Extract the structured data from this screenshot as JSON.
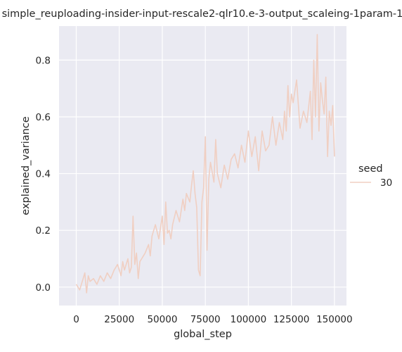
{
  "chart_data": {
    "type": "line",
    "title": "simple_reuploading-insider-input-rescale2-qlr10.e-3-output_scaleing-1param-1",
    "xlabel": "global_step",
    "ylabel": "explained_variance",
    "xlim": [
      -10000,
      157000
    ],
    "ylim": [
      -0.065,
      0.92
    ],
    "xticks": [
      0,
      25000,
      50000,
      75000,
      100000,
      125000,
      150000
    ],
    "xtick_labels": [
      "0",
      "25000",
      "50000",
      "75000",
      "100000",
      "125000",
      "150000"
    ],
    "yticks": [
      0.0,
      0.2,
      0.4,
      0.6,
      0.8
    ],
    "ytick_labels": [
      "0.0",
      "0.2",
      "0.4",
      "0.6",
      "0.8"
    ],
    "grid": true,
    "legend": {
      "title": "seed",
      "placement": "right"
    },
    "series": [
      {
        "name": "30",
        "color": "#f0cfc2",
        "x": [
          0,
          2000,
          4000,
          5000,
          6000,
          7000,
          8000,
          10000,
          12000,
          14000,
          16000,
          18000,
          20000,
          22000,
          24000,
          26000,
          27000,
          28000,
          30000,
          31000,
          32000,
          33000,
          34000,
          35000,
          36000,
          37000,
          38000,
          40000,
          42000,
          43000,
          44000,
          46000,
          48000,
          50000,
          51000,
          52000,
          53000,
          54000,
          55000,
          56000,
          58000,
          60000,
          62000,
          63000,
          64000,
          66000,
          67000,
          68000,
          69000,
          70000,
          71000,
          72000,
          73000,
          74000,
          75000,
          76000,
          77000,
          78000,
          80000,
          81000,
          82000,
          84000,
          86000,
          88000,
          90000,
          92000,
          94000,
          96000,
          98000,
          100000,
          102000,
          104000,
          106000,
          108000,
          110000,
          112000,
          114000,
          116000,
          118000,
          120000,
          121000,
          122000,
          123000,
          124000,
          125000,
          126000,
          128000,
          130000,
          132000,
          134000,
          136000,
          137000,
          138000,
          139000,
          140000,
          141000,
          142000,
          143000,
          144000,
          145000,
          146000,
          147000,
          148000,
          149000,
          150000
        ],
        "y": [
          0.01,
          -0.01,
          0.03,
          0.05,
          -0.02,
          0.04,
          0.02,
          0.03,
          0.01,
          0.04,
          0.02,
          0.05,
          0.03,
          0.06,
          0.08,
          0.04,
          0.09,
          0.06,
          0.1,
          0.05,
          0.07,
          0.25,
          0.08,
          0.12,
          0.03,
          0.09,
          0.1,
          0.12,
          0.15,
          0.11,
          0.18,
          0.22,
          0.17,
          0.25,
          0.15,
          0.3,
          0.19,
          0.2,
          0.17,
          0.22,
          0.27,
          0.23,
          0.31,
          0.27,
          0.33,
          0.3,
          0.36,
          0.41,
          0.33,
          0.28,
          0.06,
          0.04,
          0.3,
          0.35,
          0.53,
          0.13,
          0.38,
          0.44,
          0.37,
          0.52,
          0.4,
          0.35,
          0.43,
          0.38,
          0.45,
          0.47,
          0.42,
          0.5,
          0.44,
          0.55,
          0.46,
          0.53,
          0.41,
          0.55,
          0.48,
          0.5,
          0.6,
          0.5,
          0.58,
          0.52,
          0.62,
          0.55,
          0.71,
          0.6,
          0.68,
          0.65,
          0.73,
          0.56,
          0.62,
          0.58,
          0.69,
          0.52,
          0.8,
          0.6,
          0.89,
          0.55,
          0.72,
          0.66,
          0.61,
          0.74,
          0.46,
          0.62,
          0.57,
          0.64,
          0.46
        ]
      }
    ]
  }
}
